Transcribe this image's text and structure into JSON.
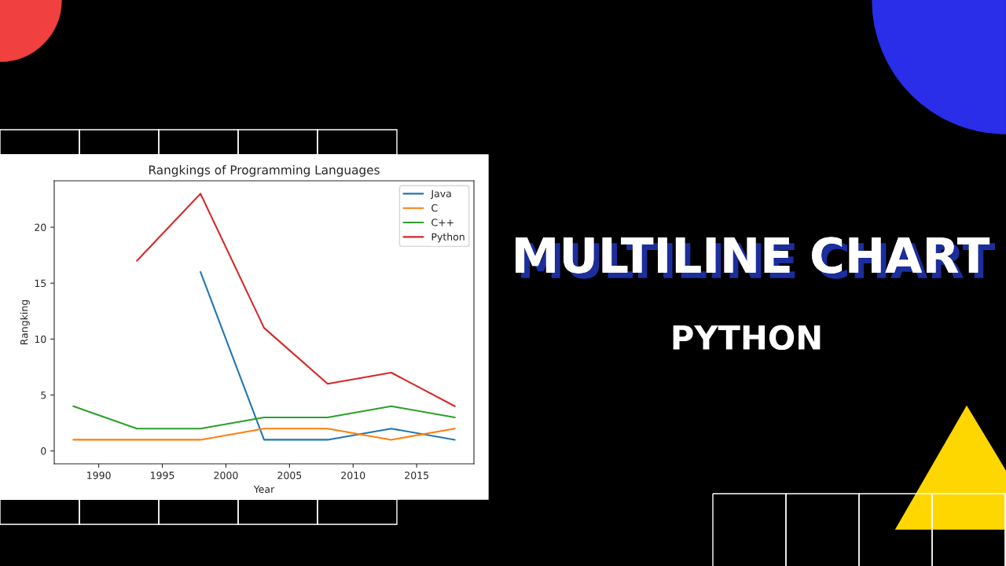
{
  "chart_data": {
    "type": "line",
    "title": "Rangkings of Programming Languages",
    "xlabel": "Year",
    "ylabel": "Rangking",
    "x": [
      1988,
      1993,
      1998,
      2003,
      2008,
      2013,
      2018
    ],
    "series": [
      {
        "name": "Java",
        "color": "#1f77b4",
        "values": [
          null,
          null,
          16,
          1,
          1,
          2,
          1
        ]
      },
      {
        "name": "C",
        "color": "#ff7f0e",
        "values": [
          1,
          1,
          1,
          2,
          2,
          1,
          2
        ]
      },
      {
        "name": "C++",
        "color": "#2ca02c",
        "values": [
          4,
          2,
          2,
          3,
          3,
          4,
          3
        ]
      },
      {
        "name": "Python",
        "color": "#d62728",
        "values": [
          null,
          17,
          23,
          11,
          6,
          7,
          4
        ]
      }
    ],
    "xlim": [
      1986.5,
      2019.5
    ],
    "xticks": [
      1990,
      1995,
      2000,
      2005,
      2010,
      2015
    ],
    "ylim": [
      -1.15,
      24.15
    ],
    "yticks": [
      0,
      5,
      10,
      15,
      20
    ],
    "grid": false,
    "legend": "top right",
    "marker": "none",
    "line_style": "solid",
    "annotations": [
      "MULTILINE CHART",
      "PYTHON"
    ]
  }
}
